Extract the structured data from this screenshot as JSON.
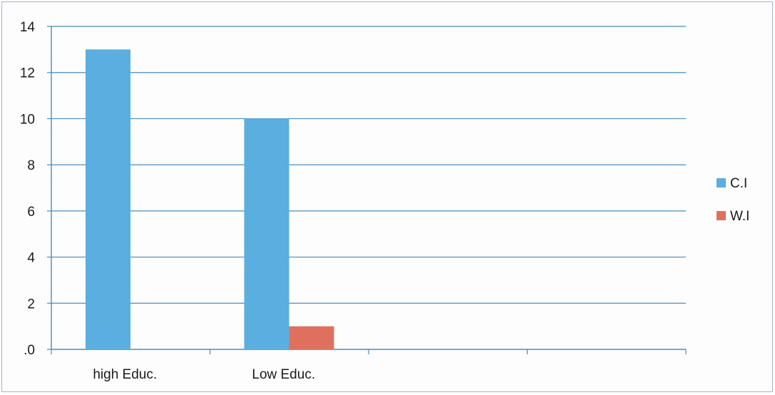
{
  "chart_data": {
    "type": "bar",
    "categories": [
      "high Educ.",
      "Low Educ.",
      "",
      ""
    ],
    "series": [
      {
        "name": "C.I",
        "values": [
          13,
          10,
          0,
          0
        ],
        "color": "#5aaee0"
      },
      {
        "name": "W.I",
        "values": [
          0,
          1,
          0,
          0
        ],
        "color": "#e0705e"
      }
    ],
    "ylim": [
      0,
      14
    ],
    "yticks": [
      ".0",
      "2",
      "4",
      "6",
      "8",
      "10",
      "12",
      "14"
    ],
    "grid": true,
    "legend_position": "right"
  }
}
